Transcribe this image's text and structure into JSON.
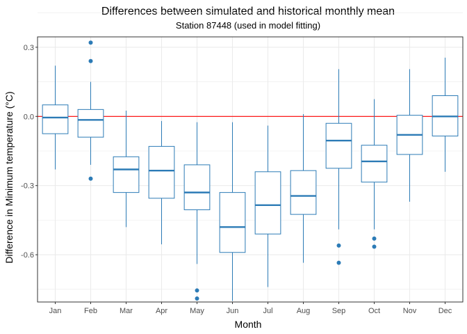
{
  "chart_data": {
    "type": "box",
    "title": "Differences between simulated and historical monthly mean",
    "subtitle": "Station 87448 (used in model fitting)",
    "xlabel": "Month",
    "ylabel": "Difference in Minimum temperature (°C)",
    "ylim": [
      -0.805,
      0.345
    ],
    "yticks": [
      0.3,
      0.0,
      -0.3,
      -0.6
    ],
    "ytick_labels": [
      "0.3",
      "0.0",
      "-0.3",
      "-0.6"
    ],
    "reference_line": {
      "y": 0.0,
      "color": "#ff0000"
    },
    "colors": {
      "box": "#2c7bb6",
      "reference": "#ff0000",
      "panel_border": "#333333",
      "grid": "#ebebeb"
    },
    "grid": true,
    "categories": [
      "Jan",
      "Feb",
      "Mar",
      "Apr",
      "May",
      "Jun",
      "Jul",
      "Aug",
      "Sep",
      "Oct",
      "Nov",
      "Dec"
    ],
    "boxes": [
      {
        "month": "Jan",
        "min": -0.23,
        "q1": -0.075,
        "median": -0.005,
        "q3": 0.05,
        "max": 0.22,
        "outliers": []
      },
      {
        "month": "Feb",
        "min": -0.21,
        "q1": -0.09,
        "median": -0.015,
        "q3": 0.03,
        "max": 0.15,
        "outliers": [
          0.32,
          0.24,
          -0.27
        ]
      },
      {
        "month": "Mar",
        "min": -0.48,
        "q1": -0.33,
        "median": -0.23,
        "q3": -0.175,
        "max": 0.025,
        "outliers": []
      },
      {
        "month": "Apr",
        "min": -0.555,
        "q1": -0.355,
        "median": -0.235,
        "q3": -0.13,
        "max": -0.02,
        "outliers": []
      },
      {
        "month": "May",
        "min": -0.64,
        "q1": -0.405,
        "median": -0.33,
        "q3": -0.21,
        "max": -0.025,
        "outliers": [
          -0.755,
          -0.79
        ]
      },
      {
        "month": "Jun",
        "min": -0.8,
        "q1": -0.59,
        "median": -0.48,
        "q3": -0.33,
        "max": -0.025,
        "outliers": []
      },
      {
        "month": "Jul",
        "min": -0.74,
        "q1": -0.51,
        "median": -0.385,
        "q3": -0.24,
        "max": -0.04,
        "outliers": []
      },
      {
        "month": "Aug",
        "min": -0.635,
        "q1": -0.425,
        "median": -0.345,
        "q3": -0.235,
        "max": 0.01,
        "outliers": []
      },
      {
        "month": "Sep",
        "min": -0.49,
        "q1": -0.225,
        "median": -0.105,
        "q3": -0.03,
        "max": 0.205,
        "outliers": [
          -0.56,
          -0.635
        ]
      },
      {
        "month": "Oct",
        "min": -0.49,
        "q1": -0.285,
        "median": -0.195,
        "q3": -0.125,
        "max": 0.075,
        "outliers": [
          -0.53,
          -0.565
        ]
      },
      {
        "month": "Nov",
        "min": -0.37,
        "q1": -0.165,
        "median": -0.08,
        "q3": 0.005,
        "max": 0.205,
        "outliers": []
      },
      {
        "month": "Dec",
        "min": -0.24,
        "q1": -0.085,
        "median": 0.0,
        "q3": 0.09,
        "max": 0.255,
        "outliers": []
      }
    ]
  }
}
